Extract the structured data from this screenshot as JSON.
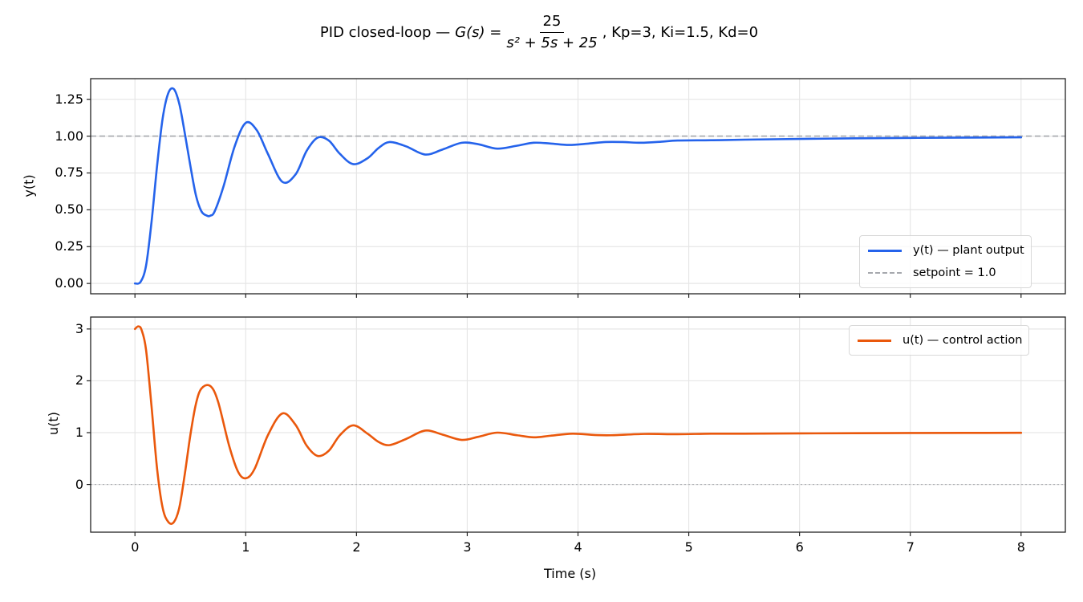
{
  "figure": {
    "title_prefix": "PID closed-loop — ",
    "title_lhs": "G(s) = ",
    "title_num": "25",
    "title_den": "s² + 5s + 25",
    "title_suffix": ",  Kp=3, Ki=1.5, Kd=0"
  },
  "colors": {
    "y_series": "#2563eb",
    "u_series": "#ea580c",
    "setpoint": "#a6a8ad",
    "zero_line": "#a6a8ad",
    "grid": "#e6e6e6",
    "frame": "#222222"
  },
  "chart_data": [
    {
      "type": "line",
      "title": "PID closed-loop — G(s)=25/(s^2+5s+25), Kp=3, Ki=1.5, Kd=0",
      "xlabel": "",
      "ylabel": "y(t)",
      "xlim": [
        -0.4,
        8.4
      ],
      "ylim": [
        -0.07,
        1.39
      ],
      "xticks": [
        0,
        1,
        2,
        3,
        4,
        5,
        6,
        7,
        8
      ],
      "yticks": [
        0.0,
        0.25,
        0.5,
        0.75,
        1.0,
        1.25
      ],
      "ytick_labels": [
        "0.00",
        "0.25",
        "0.50",
        "0.75",
        "1.00",
        "1.25"
      ],
      "grid": true,
      "legend_position": "lower right",
      "legend": [
        "y(t) — plant output",
        "setpoint = 1.0"
      ],
      "series": [
        {
          "name": "y(t) — plant output",
          "style": "solid",
          "x": [
            0,
            0.05,
            0.1,
            0.15,
            0.2,
            0.25,
            0.3,
            0.35,
            0.4,
            0.45,
            0.5,
            0.55,
            0.6,
            0.65,
            0.68,
            0.72,
            0.8,
            0.9,
            1.0,
            1.1,
            1.2,
            1.33,
            1.45,
            1.55,
            1.65,
            1.75,
            1.85,
            1.97,
            2.1,
            2.2,
            2.3,
            2.45,
            2.62,
            2.78,
            2.95,
            3.1,
            3.27,
            3.45,
            3.6,
            3.75,
            3.92,
            4.1,
            4.25,
            4.4,
            4.57,
            4.75,
            4.9,
            5.2,
            5.5,
            6.0,
            6.5,
            7.0,
            7.5,
            8.0
          ],
          "y": [
            0,
            0.01,
            0.12,
            0.42,
            0.8,
            1.12,
            1.29,
            1.32,
            1.22,
            1.02,
            0.8,
            0.6,
            0.49,
            0.46,
            0.46,
            0.49,
            0.66,
            0.93,
            1.09,
            1.04,
            0.88,
            0.69,
            0.74,
            0.9,
            0.99,
            0.97,
            0.88,
            0.81,
            0.85,
            0.92,
            0.96,
            0.93,
            0.875,
            0.91,
            0.955,
            0.945,
            0.915,
            0.935,
            0.955,
            0.95,
            0.94,
            0.95,
            0.96,
            0.96,
            0.955,
            0.962,
            0.97,
            0.972,
            0.976,
            0.981,
            0.985,
            0.988,
            0.99,
            0.992
          ]
        },
        {
          "name": "setpoint = 1.0",
          "style": "dashed",
          "constant": 1.0
        }
      ]
    },
    {
      "type": "line",
      "xlabel": "Time (s)",
      "ylabel": "u(t)",
      "xlim": [
        -0.4,
        8.4
      ],
      "ylim": [
        -0.92,
        3.23
      ],
      "xticks": [
        0,
        1,
        2,
        3,
        4,
        5,
        6,
        7,
        8
      ],
      "xtick_labels": [
        "0",
        "1",
        "2",
        "3",
        "4",
        "5",
        "6",
        "7",
        "8"
      ],
      "yticks": [
        0,
        1,
        2,
        3
      ],
      "ytick_labels": [
        "0",
        "1",
        "2",
        "3"
      ],
      "grid": true,
      "legend_position": "upper right",
      "legend": [
        "u(t) — control action"
      ],
      "series": [
        {
          "name": "u(t) — control action",
          "style": "solid",
          "x": [
            0,
            0.03,
            0.06,
            0.1,
            0.15,
            0.2,
            0.25,
            0.3,
            0.35,
            0.4,
            0.45,
            0.5,
            0.55,
            0.6,
            0.68,
            0.75,
            0.85,
            0.93,
            1.0,
            1.08,
            1.2,
            1.33,
            1.45,
            1.55,
            1.65,
            1.75,
            1.85,
            1.97,
            2.1,
            2.2,
            2.3,
            2.45,
            2.62,
            2.78,
            2.95,
            3.1,
            3.27,
            3.45,
            3.6,
            3.75,
            3.95,
            4.15,
            4.3,
            4.6,
            4.9,
            5.2,
            5.5,
            6.0,
            6.5,
            7.0,
            7.5,
            8.0
          ],
          "y": [
            3.0,
            3.05,
            2.98,
            2.6,
            1.5,
            0.3,
            -0.45,
            -0.72,
            -0.73,
            -0.45,
            0.2,
            0.95,
            1.55,
            1.85,
            1.9,
            1.6,
            0.75,
            0.25,
            0.12,
            0.3,
            0.95,
            1.37,
            1.15,
            0.75,
            0.55,
            0.65,
            0.95,
            1.14,
            0.98,
            0.82,
            0.76,
            0.88,
            1.04,
            0.96,
            0.86,
            0.92,
            1.0,
            0.95,
            0.91,
            0.94,
            0.98,
            0.955,
            0.95,
            0.975,
            0.97,
            0.98,
            0.98,
            0.985,
            0.99,
            0.993,
            0.995,
            0.997
          ]
        },
        {
          "name": "zero reference",
          "style": "dotted",
          "constant": 0
        }
      ]
    }
  ]
}
